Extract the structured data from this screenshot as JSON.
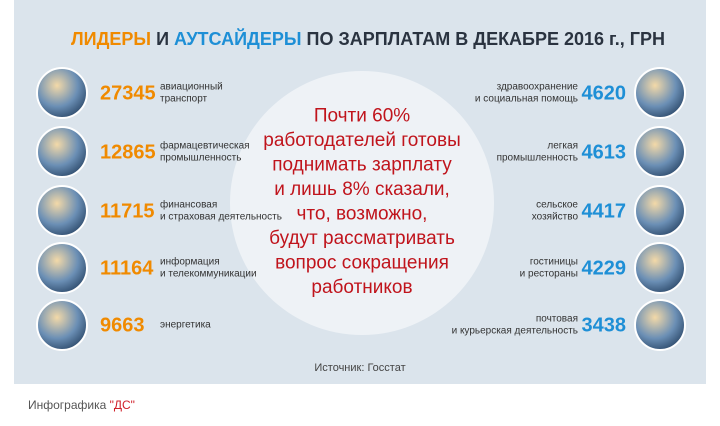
{
  "title": {
    "leaders": "ЛИДЕРЫ",
    "and": "И",
    "outsiders": "АУТСАЙДЕРЫ",
    "rest": "ПО ЗАРПЛАТАМ В ДЕКАБРЕ 2016 г., ГРН"
  },
  "leaders": [
    {
      "value": "27345",
      "label": [
        "авиационный",
        "транспорт"
      ]
    },
    {
      "value": "12865",
      "label": [
        "фармацевтическая",
        "промышленность"
      ]
    },
    {
      "value": "11715",
      "label": [
        "финансовая",
        "и страховая деятельность"
      ]
    },
    {
      "value": "11164",
      "label": [
        "информация",
        "и телекоммуникации"
      ]
    },
    {
      "value": "9663",
      "label": [
        "энергетика"
      ]
    }
  ],
  "outsiders": [
    {
      "value": "4620",
      "label": [
        "здравоохранение",
        "и социальная помощь"
      ]
    },
    {
      "value": "4613",
      "label": [
        "легкая",
        "промышленность"
      ]
    },
    {
      "value": "4417",
      "label": [
        "сельское",
        "хозяйство"
      ]
    },
    {
      "value": "4229",
      "label": [
        "гостиницы",
        "и рестораны"
      ]
    },
    {
      "value": "3438",
      "label": [
        "почтовая",
        "и курьерская деятельность"
      ]
    }
  ],
  "center_text": [
    "Почти 60%",
    "работодателей готовы",
    "поднимать зарплату",
    "и лишь 8% сказали,",
    "что, возможно,",
    "будут рассматривать",
    "вопрос сокращения",
    "работников"
  ],
  "source": "Источник: Госстат",
  "footer": {
    "text": "Инфографика ",
    "brand": "\"ДС\""
  }
}
